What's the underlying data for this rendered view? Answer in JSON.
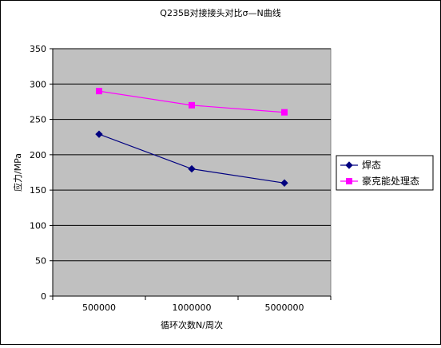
{
  "chart_data": {
    "type": "line",
    "title": "Q235B对接接头对比σ—N曲线",
    "xlabel": "循环次数N/周次",
    "ylabel": "应力/MPa",
    "categories": [
      "500000",
      "1000000",
      "5000000"
    ],
    "series": [
      {
        "name": "焊态",
        "values": [
          229,
          180,
          160
        ],
        "color": "#000080",
        "marker": "diamond"
      },
      {
        "name": "豪克能处理态",
        "values": [
          290,
          270,
          260
        ],
        "color": "#ff00ff",
        "marker": "square"
      }
    ],
    "ylim": [
      0,
      350
    ],
    "yticks": [
      0,
      50,
      100,
      150,
      200,
      250,
      300,
      350
    ],
    "grid": true,
    "legend": "right"
  },
  "colors": {
    "plot_background": "#c0c0c0",
    "outer_border": "#000000"
  }
}
